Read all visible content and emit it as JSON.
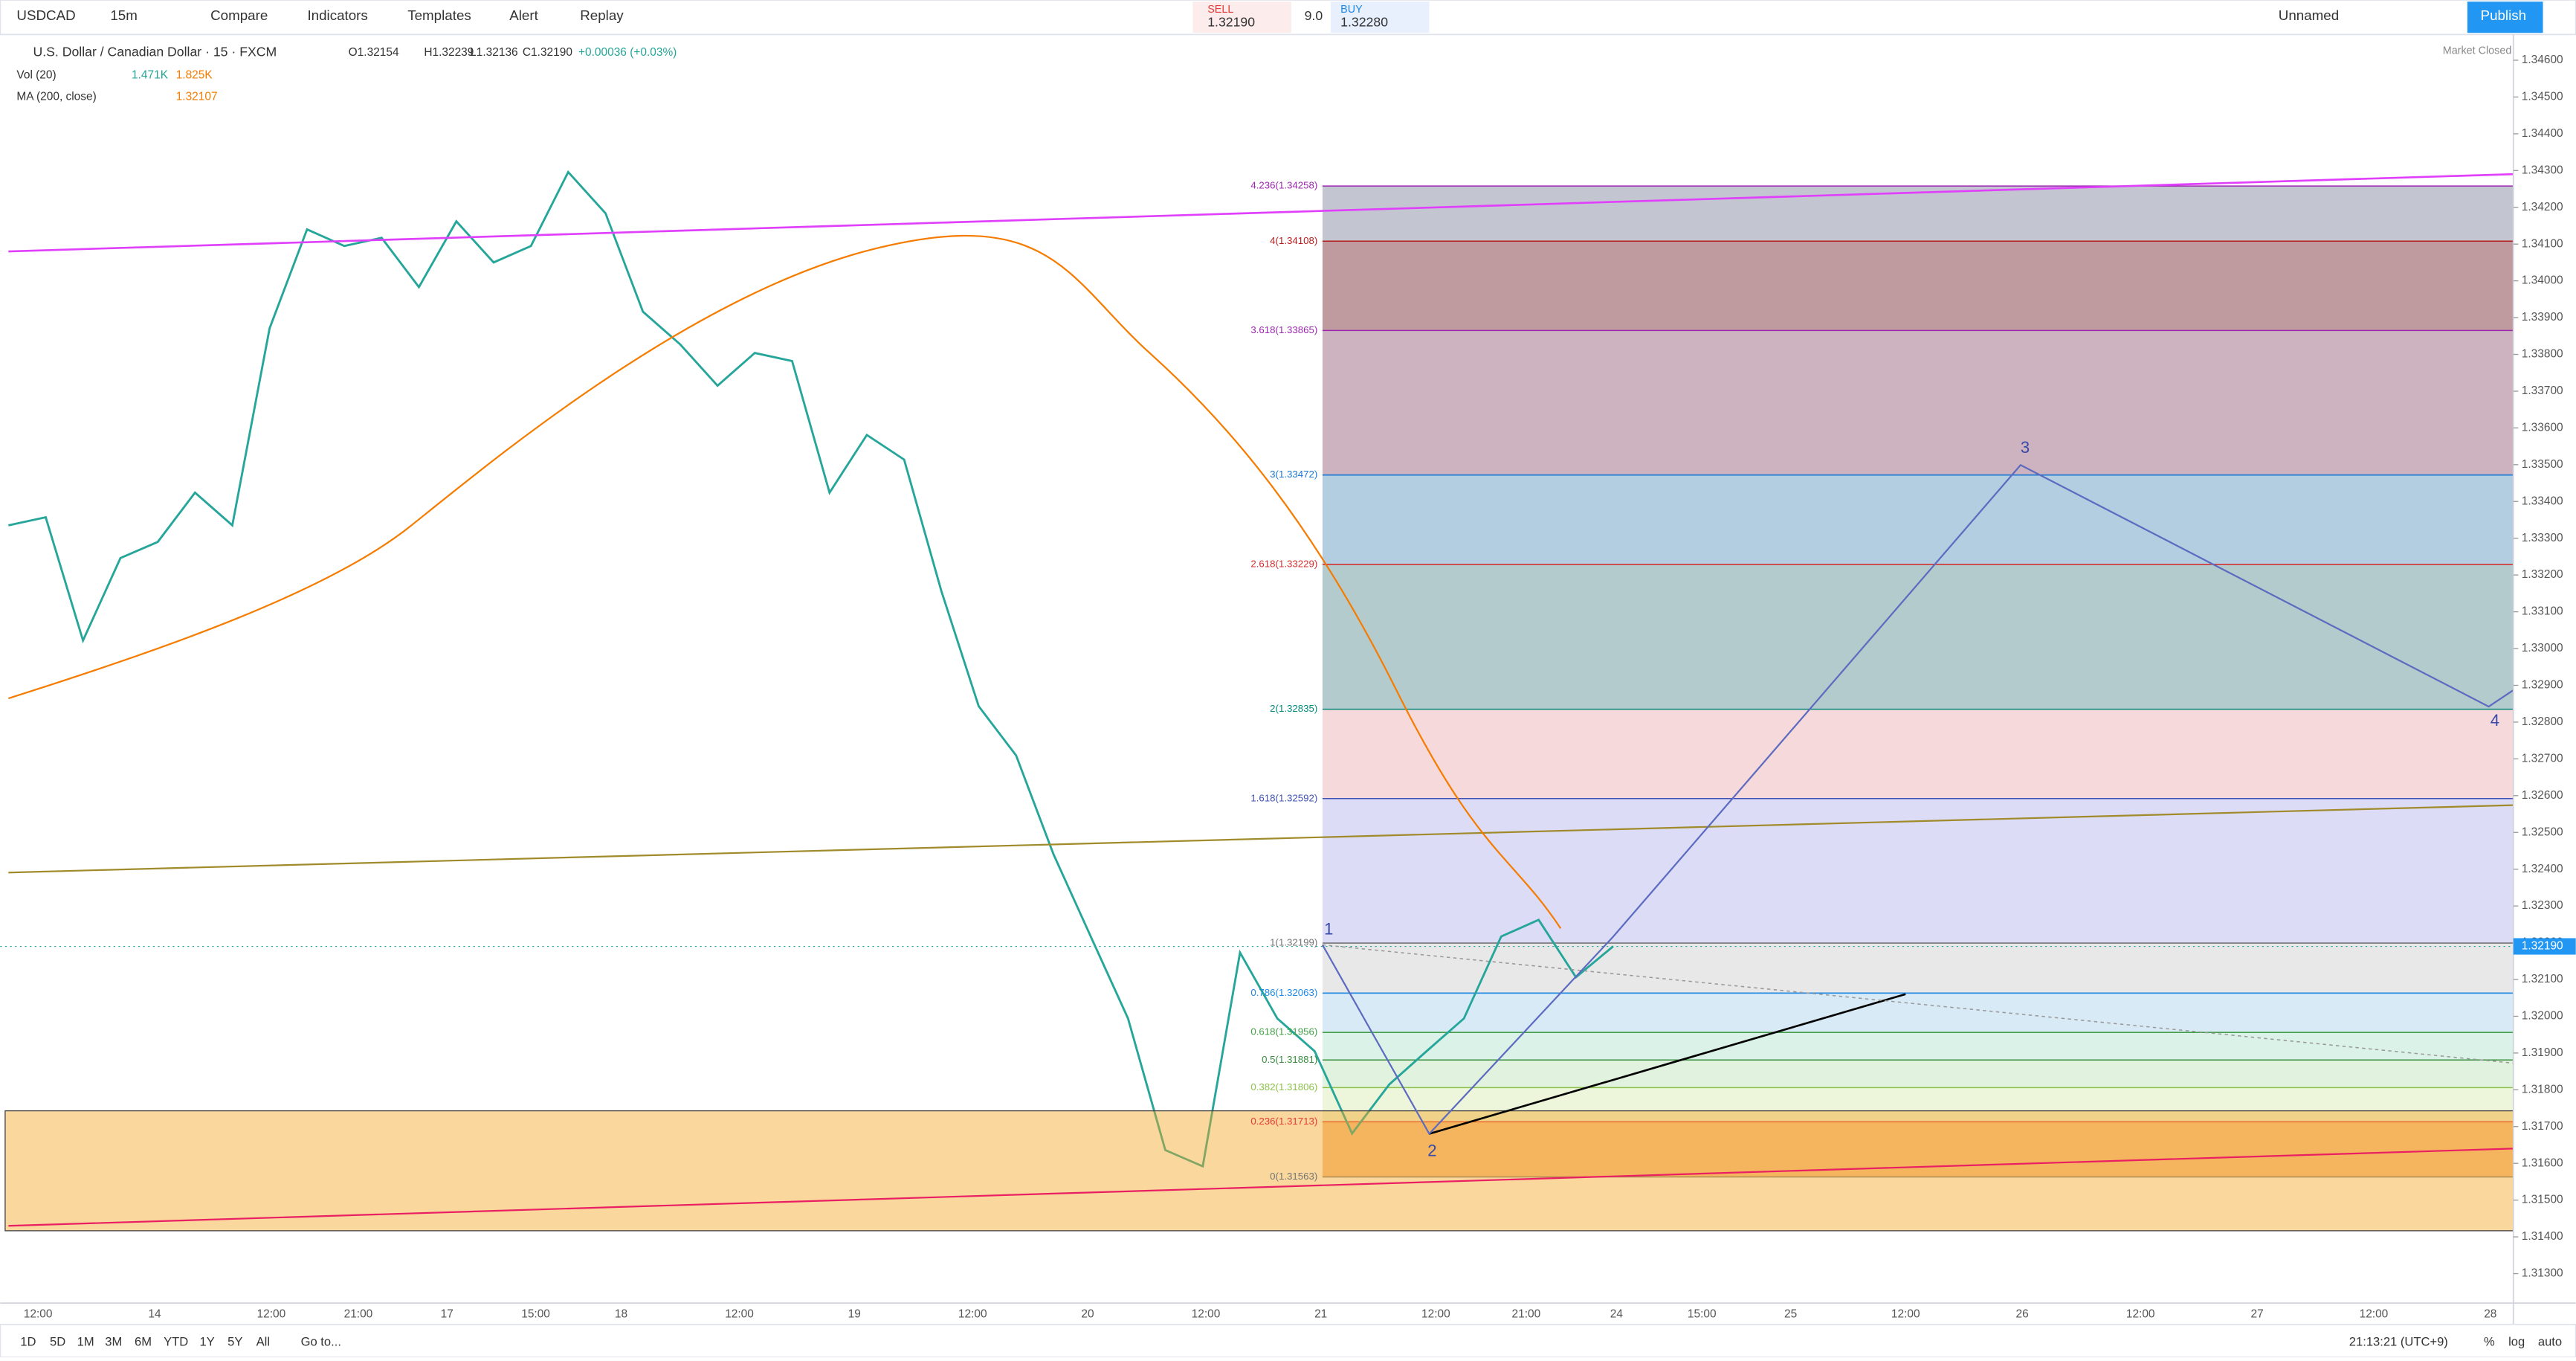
{
  "toolbar": {
    "symbol": "USDCAD",
    "interval": "15m",
    "compare": "Compare",
    "indicators": "Indicators",
    "templates": "Templates",
    "alert": "Alert",
    "replay": "Replay",
    "sell_label": "SELL",
    "sell_price": "1.32190",
    "spread": "9.0",
    "buy_label": "BUY",
    "buy_price": "1.32280",
    "layout_name": "Unnamed",
    "publish": "Publish"
  },
  "legend": {
    "title": "U.S. Dollar / Canadian Dollar · 15 · FXCM",
    "open": "O1.32154",
    "high": "H1.32239",
    "low": "L1.32136",
    "close": "C1.32190",
    "change": "+0.00036 (+0.03%)",
    "volume": "Vol (20)",
    "volume_value": "1.471K",
    "volume_ma": "1.825K",
    "ma": "MA (200, close)",
    "ma_value": "1.32107",
    "market_status": "Market Closed"
  },
  "chart_data": {
    "type": "line",
    "series": [
      {
        "name": "USDCAD",
        "color": "#26a69a",
        "values": [
          1.33335,
          1.33357,
          1.33022,
          1.33246,
          1.3329,
          1.33424,
          1.33335,
          1.33871,
          1.3414,
          1.34095,
          1.34117,
          1.33983,
          1.34162,
          1.3405,
          1.34095,
          1.34296,
          1.34184,
          1.33916,
          1.33827,
          1.33715,
          1.33804,
          1.33782,
          1.33424,
          1.33581,
          1.33514,
          1.33156,
          1.32843,
          1.32709,
          1.32441,
          1.32217,
          1.31994,
          1.31636,
          1.31592,
          1.32173,
          1.31994,
          1.31905,
          1.31681,
          1.31815,
          1.31905,
          1.31994,
          1.32217,
          1.32262,
          1.32106,
          1.3219
        ]
      }
    ],
    "ylim": [
      1.3122,
      1.3467
    ],
    "yticks": [
      {
        "value": 1.313,
        "label": "1.31300"
      },
      {
        "value": 1.314,
        "label": "1.31400"
      },
      {
        "value": 1.315,
        "label": "1.31500"
      },
      {
        "value": 1.316,
        "label": "1.31600"
      },
      {
        "value": 1.317,
        "label": "1.31700"
      },
      {
        "value": 1.318,
        "label": "1.31800"
      },
      {
        "value": 1.319,
        "label": "1.31900"
      },
      {
        "value": 1.32,
        "label": "1.32000"
      },
      {
        "value": 1.321,
        "label": "1.32100"
      },
      {
        "value": 1.322,
        "label": "1.32200"
      },
      {
        "value": 1.323,
        "label": "1.32300"
      },
      {
        "value": 1.324,
        "label": "1.32400"
      },
      {
        "value": 1.325,
        "label": "1.32500"
      },
      {
        "value": 1.326,
        "label": "1.32600"
      },
      {
        "value": 1.327,
        "label": "1.32700"
      },
      {
        "value": 1.328,
        "label": "1.32800"
      },
      {
        "value": 1.329,
        "label": "1.32900"
      },
      {
        "value": 1.33,
        "label": "1.33000"
      },
      {
        "value": 1.331,
        "label": "1.33100"
      },
      {
        "value": 1.332,
        "label": "1.33200"
      },
      {
        "value": 1.333,
        "label": "1.33300"
      },
      {
        "value": 1.334,
        "label": "1.33400"
      },
      {
        "value": 1.335,
        "label": "1.33500"
      },
      {
        "value": 1.336,
        "label": "1.33600"
      },
      {
        "value": 1.337,
        "label": "1.33700"
      },
      {
        "value": 1.338,
        "label": "1.33800"
      },
      {
        "value": 1.339,
        "label": "1.33900"
      },
      {
        "value": 1.34,
        "label": "1.34000"
      },
      {
        "value": 1.341,
        "label": "1.34100"
      },
      {
        "value": 1.342,
        "label": "1.34200"
      },
      {
        "value": 1.343,
        "label": "1.34300"
      },
      {
        "value": 1.344,
        "label": "1.34400"
      },
      {
        "value": 1.345,
        "label": "1.34500"
      },
      {
        "value": 1.346,
        "label": "1.34600"
      }
    ],
    "last_price": {
      "value": 1.3219,
      "label": "1.32190"
    },
    "x_labels": [
      "12:00",
      "14",
      "12:00",
      "21:00",
      "17",
      "15:00",
      "18",
      "12:00",
      "19",
      "12:00",
      "20",
      "12:00",
      "21",
      "12:00",
      "21:00",
      "24",
      "15:00",
      "25",
      "12:00",
      "26",
      "12:00",
      "27",
      "12:00",
      "28"
    ],
    "fib_levels": [
      {
        "price": 1.34258,
        "label": "4.236(1.34258)",
        "color": "#9c27b0",
        "fill": "#b8bcc8"
      },
      {
        "price": 1.34108,
        "label": "4(1.34108)",
        "color": "#b71c1c",
        "fill": "#b48a8e"
      },
      {
        "price": 1.33865,
        "label": "3.618(1.33865)",
        "color": "#9c27b0",
        "fill": "#c4a6b4"
      },
      {
        "price": 1.33472,
        "label": "3(1.33472)",
        "color": "#1976d2",
        "fill": "#a6c4dc"
      },
      {
        "price": 1.33229,
        "label": "2.618(1.33229)",
        "color": "#d32f2f",
        "fill": "#a7c2c4"
      },
      {
        "price": 1.32835,
        "label": "2(1.32835)",
        "color": "#00897b",
        "fill": "#f4d2d4"
      },
      {
        "price": 1.32592,
        "label": "1.618(1.32592)",
        "color": "#3f51b5",
        "fill": "#d6d6f6"
      },
      {
        "price": 1.32199,
        "label": "1(1.32199)",
        "color": "#757575",
        "fill": "#e4e4e4"
      },
      {
        "price": 1.32063,
        "label": "0.786(1.32063)",
        "color": "#1e88e5",
        "fill": "#d2e6f6"
      },
      {
        "price": 1.31956,
        "label": "0.618(1.31956)",
        "color": "#43a047",
        "fill": "#d4f0e4"
      },
      {
        "price": 1.31881,
        "label": "0.5(1.31881)",
        "color": "#388e3c",
        "fill": "#dcf0d8"
      },
      {
        "price": 1.31806,
        "label": "0.382(1.31806)",
        "color": "#8bc34a",
        "fill": "#eaf4d4"
      },
      {
        "price": 1.31713,
        "label": "0.236(1.31713)",
        "color": "#e53935",
        "fill": "#f2b77a"
      },
      {
        "price": 1.31563,
        "label": "0(1.31563)",
        "color": "#757575",
        "fill": "none"
      }
    ]
  },
  "waves": [
    "1",
    "2",
    "3",
    "4"
  ],
  "bottom_bar": {
    "ranges": [
      "1D",
      "5D",
      "1M",
      "3M",
      "6M",
      "YTD",
      "1Y",
      "5Y",
      "All"
    ],
    "goto": "Go to...",
    "clock": "21:13:21 (UTC+9)",
    "percent": "%",
    "log": "log",
    "auto": "auto"
  }
}
